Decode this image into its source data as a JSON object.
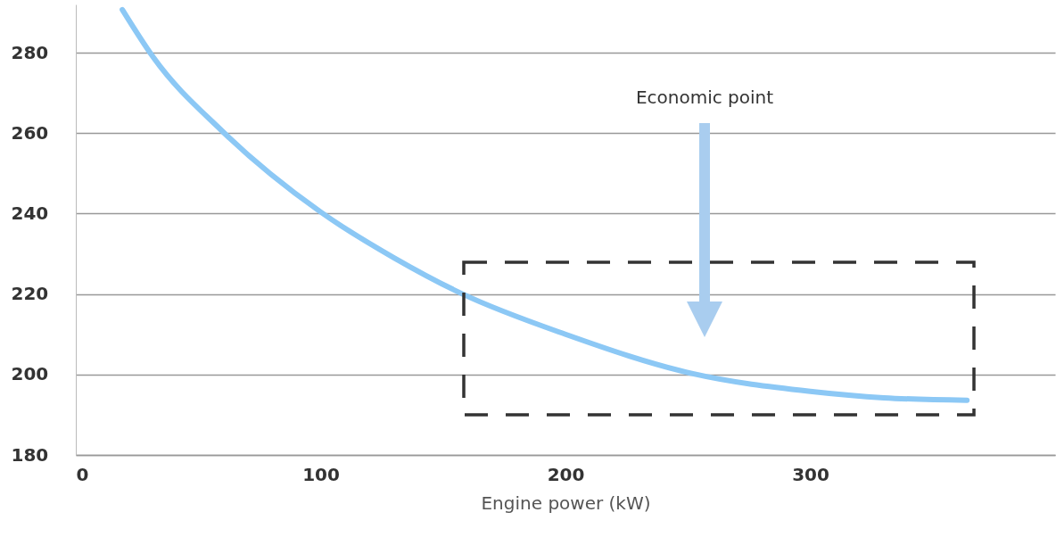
{
  "chart_data": {
    "type": "line",
    "xlabel": "Engine power (kW)",
    "xlim": [
      0,
      400
    ],
    "ylim": [
      180,
      292
    ],
    "xticks": [
      0,
      100,
      200,
      300
    ],
    "yticks": [
      180,
      200,
      220,
      240,
      260,
      280
    ],
    "grid": "y",
    "marker": "none",
    "line_style": "solid",
    "series": [
      {
        "color": "#8cc8f5",
        "x": [
          19,
          31.6,
          60,
          100,
          130,
          158,
          200,
          252,
          300,
          330,
          364
        ],
        "values": [
          290.7,
          278.9,
          260.4,
          240.4,
          229,
          220,
          210,
          200.2,
          195.8,
          194.2,
          193.6
        ]
      }
    ],
    "annotations": [
      "Economic point"
    ]
  }
}
